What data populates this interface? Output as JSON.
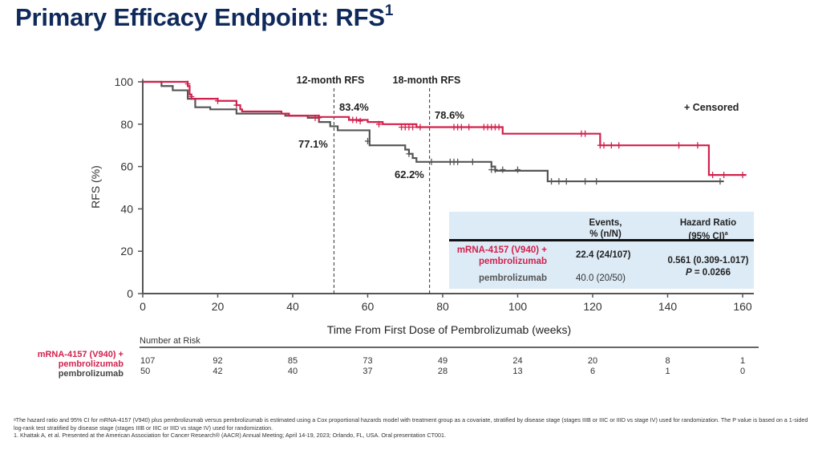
{
  "slide": {
    "title": "Primary Efficacy Endpoint: RFS",
    "title_superscript": "1"
  },
  "chart_data": {
    "type": "line",
    "subtype": "kaplan-meier",
    "title": "Primary Efficacy Endpoint: RFS",
    "xlabel": "Time From First Dose of Pembrolizumab (weeks)",
    "ylabel": "RFS (%)",
    "xlim": [
      0,
      160
    ],
    "ylim": [
      0,
      100
    ],
    "xticks": [
      0,
      20,
      40,
      60,
      80,
      100,
      120,
      140,
      160
    ],
    "yticks": [
      0,
      20,
      40,
      60,
      80,
      100
    ],
    "grid": false,
    "legend": {
      "text": "+ Censored",
      "position": "top-right"
    },
    "colors": {
      "combo": "#d2204c",
      "mono": "#555555"
    },
    "reference_lines": [
      {
        "x": 51,
        "label": "12-month RFS"
      },
      {
        "x": 76.5,
        "label": "18-month RFS"
      }
    ],
    "annotations": [
      {
        "text": "83.4%",
        "series": "mRNA-4157 (V940) + pembrolizumab",
        "timepoint": "12-month"
      },
      {
        "text": "77.1%",
        "series": "pembrolizumab",
        "timepoint": "12-month"
      },
      {
        "text": "78.6%",
        "series": "mRNA-4157 (V940) + pembrolizumab",
        "timepoint": "18-month"
      },
      {
        "text": "62.2%",
        "series": "pembrolizumab",
        "timepoint": "18-month"
      }
    ],
    "series": [
      {
        "name": "mRNA-4157 (V940) + pembrolizumab",
        "color_key": "combo",
        "steps": [
          [
            0,
            100
          ],
          [
            12,
            98
          ],
          [
            12.5,
            94
          ],
          [
            13,
            92
          ],
          [
            20,
            91
          ],
          [
            25,
            89
          ],
          [
            26,
            87
          ],
          [
            26.5,
            86
          ],
          [
            37,
            85
          ],
          [
            39,
            84
          ],
          [
            47,
            83.4
          ],
          [
            55,
            82
          ],
          [
            60,
            81
          ],
          [
            64,
            80
          ],
          [
            73,
            78.6
          ],
          [
            96,
            75.5
          ],
          [
            122,
            70
          ],
          [
            151,
            56
          ],
          [
            161,
            56
          ]
        ],
        "censored": [
          [
            12,
            99
          ],
          [
            13,
            93
          ],
          [
            20,
            91
          ],
          [
            25,
            89
          ],
          [
            46,
            83
          ],
          [
            47,
            83
          ],
          [
            56,
            82
          ],
          [
            57,
            82
          ],
          [
            58,
            81.5
          ],
          [
            63,
            80
          ],
          [
            69,
            78.6
          ],
          [
            70,
            78.6
          ],
          [
            71,
            78.6
          ],
          [
            72,
            78.6
          ],
          [
            74,
            78.6
          ],
          [
            83,
            78.6
          ],
          [
            84,
            78.6
          ],
          [
            85,
            78.6
          ],
          [
            87,
            78.6
          ],
          [
            91,
            78.6
          ],
          [
            92,
            78.6
          ],
          [
            93,
            78.6
          ],
          [
            94,
            78.6
          ],
          [
            95,
            78.6
          ],
          [
            117,
            75.5
          ],
          [
            118,
            75.5
          ],
          [
            122,
            70
          ],
          [
            123,
            70
          ],
          [
            125,
            70
          ],
          [
            127,
            70
          ],
          [
            143,
            70
          ],
          [
            148,
            70
          ],
          [
            152,
            56
          ],
          [
            155,
            56
          ],
          [
            160,
            56
          ]
        ]
      },
      {
        "name": "pembrolizumab",
        "color_key": "mono",
        "steps": [
          [
            0,
            100
          ],
          [
            5,
            98
          ],
          [
            8,
            96
          ],
          [
            12,
            92
          ],
          [
            14,
            88
          ],
          [
            18,
            87
          ],
          [
            25,
            85
          ],
          [
            38,
            84
          ],
          [
            44,
            83
          ],
          [
            47,
            81
          ],
          [
            50,
            79
          ],
          [
            52,
            77.1
          ],
          [
            60,
            77.1
          ],
          [
            60.5,
            70
          ],
          [
            70,
            68
          ],
          [
            71,
            66
          ],
          [
            72,
            64
          ],
          [
            73,
            62.2
          ],
          [
            93,
            60
          ],
          [
            94,
            58
          ],
          [
            108,
            53
          ],
          [
            155,
            53
          ]
        ],
        "censored": [
          [
            0,
            100
          ],
          [
            60,
            72
          ],
          [
            71,
            66
          ],
          [
            77,
            62.2
          ],
          [
            82,
            62.2
          ],
          [
            83,
            62.2
          ],
          [
            84,
            62.2
          ],
          [
            88,
            62.2
          ],
          [
            93,
            58.5
          ],
          [
            94,
            58.5
          ],
          [
            96,
            58.5
          ],
          [
            100,
            58.5
          ],
          [
            109,
            53
          ],
          [
            111,
            53
          ],
          [
            113,
            53
          ],
          [
            118,
            53
          ],
          [
            121,
            53
          ],
          [
            154,
            53
          ]
        ]
      }
    ],
    "number_at_risk": {
      "title": "Number at Risk",
      "timepoints": [
        0,
        20,
        40,
        60,
        80,
        100,
        120,
        140,
        160
      ],
      "rows": [
        {
          "label": "mRNA-4157 (V940) + pembrolizumab",
          "label_line1": "mRNA-4157 (V940) +",
          "label_line2": "pembrolizumab",
          "values": [
            107,
            92,
            85,
            73,
            49,
            24,
            20,
            8,
            1
          ]
        },
        {
          "label": "pembrolizumab",
          "values": [
            50,
            42,
            40,
            37,
            28,
            13,
            6,
            1,
            0
          ]
        }
      ]
    },
    "summary_table": {
      "header_events_line1": "Events,",
      "header_events_line2": "% (n/N)",
      "header_hr_line1": "Hazard Ratio",
      "header_hr_line2": "(95% CI)",
      "header_hr_sup": "a",
      "row1_label_line1": "mRNA-4157 (V940) +",
      "row1_label_line2": "pembrolizumab",
      "row1_events": "22.4 (24/107)",
      "row2_label": "pembrolizumab",
      "row2_events": "40.0 (20/50)",
      "hazard_ratio": "0.561 (0.309-1.017)",
      "p_label": "P",
      "p_value": " = 0.0266"
    }
  },
  "footnotes": {
    "line1": "ᵃThe hazard ratio and 95% CI for mRNA-4157 (V940) plus pembrolizumab versus pembrolizumab is estimated using a Cox proportional hazards model with treatment group as a covariate, stratified by disease stage (stages IIIB or IIIC or IIID vs stage IV) used for randomization. The P value is based on a 1-sided log-rank test stratified by disease stage (stages IIIB or IIIC or IIID vs stage IV) used for randomization.",
    "line2": "1. Khattak A, et al. Presented at the American Association for Cancer Research® (AACR) Annual Meeting; April 14-19, 2023; Orlando, FL, USA. Oral presentation CT001."
  }
}
